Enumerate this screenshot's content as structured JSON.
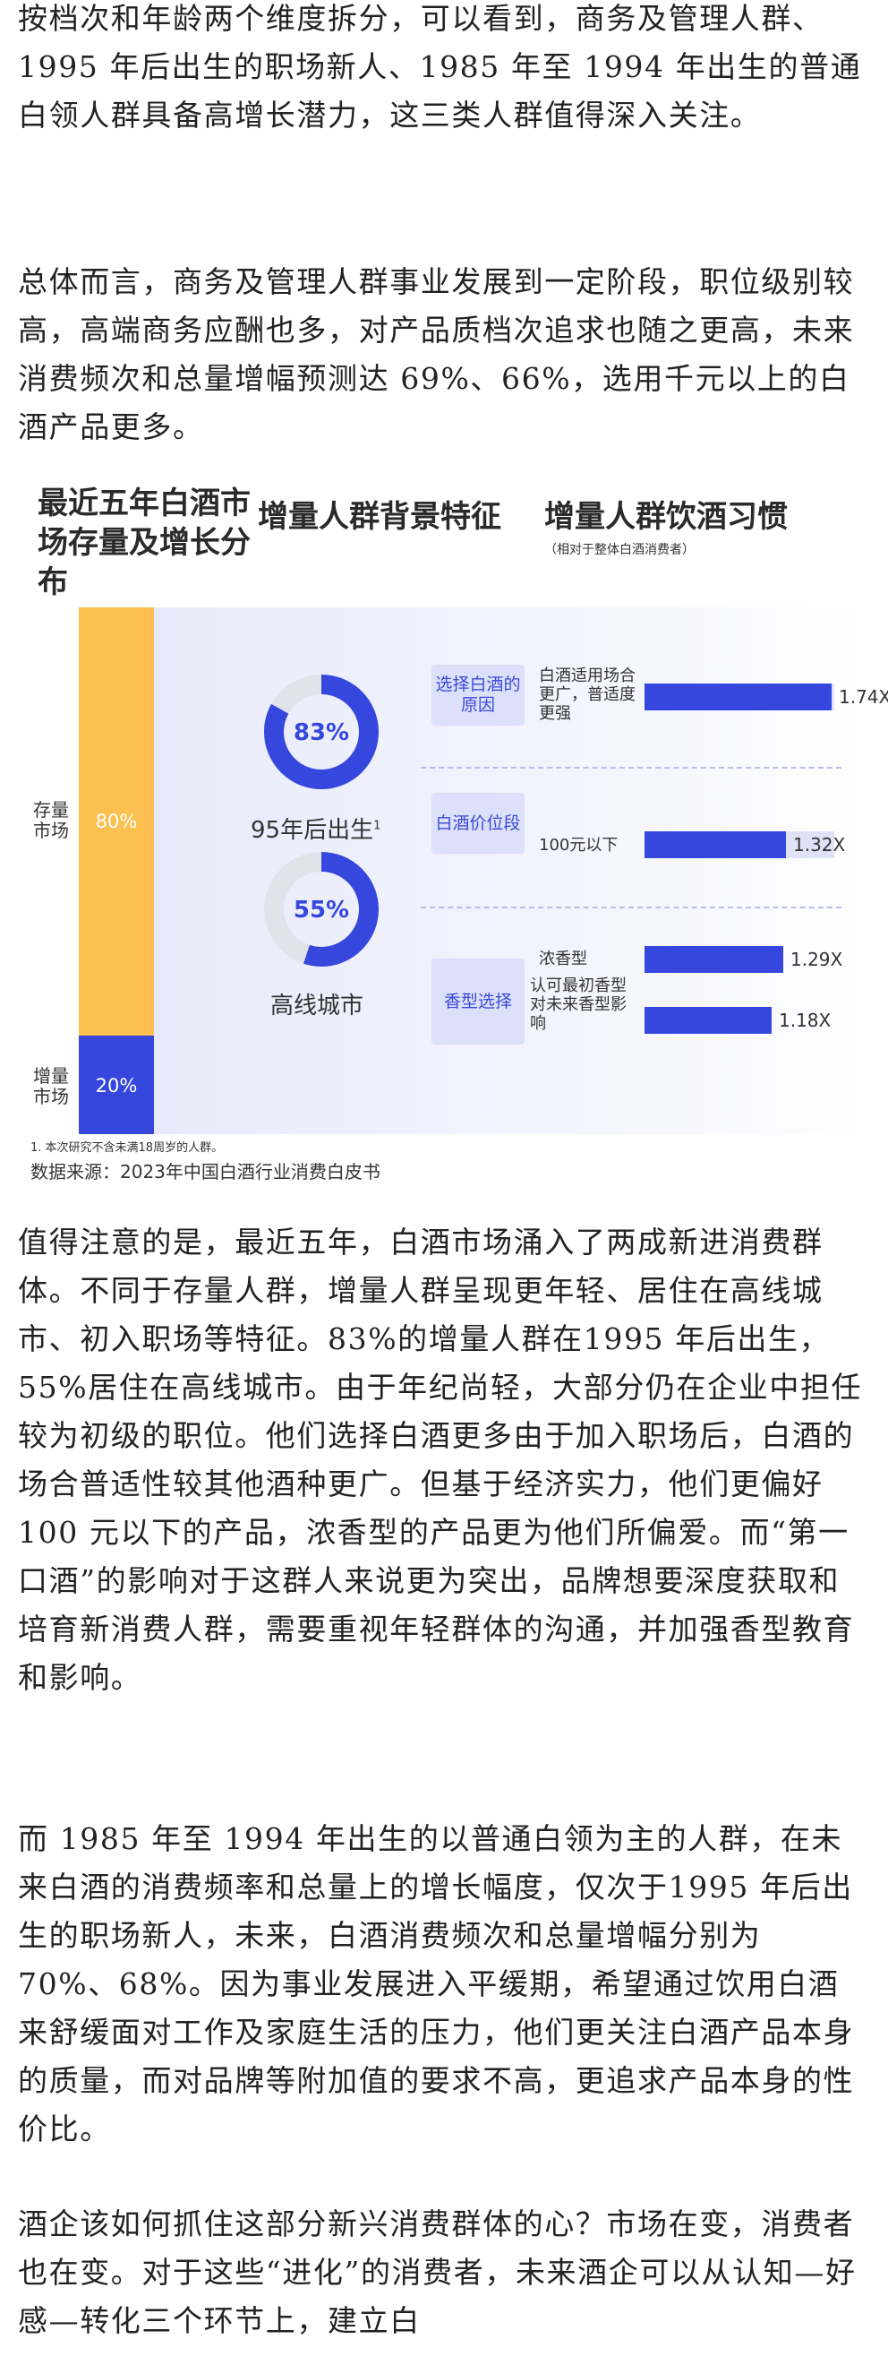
{
  "article": {
    "p1": "按档次和年龄两个维度拆分，可以看到，商务及管理人群、1995 年后出生的职场新人、1985 年至 1994 年出生的普通白领人群具备高增长潜力，这三类人群值得深入关注。",
    "p2": "总体而言，商务及管理人群事业发展到一定阶段，职位级别较高，高端商务应酬也多，对产品质档次追求也随之更高，未来消费频次和总量增幅预测达 69%、66%，选用千元以上的白酒产品更多。",
    "p3": "值得注意的是，最近五年，白酒市场涌入了两成新进消费群体。不同于存量人群，增量人群呈现更年轻、居住在高线城市、初入职场等特征。83%的增量人群在1995 年后出生，55%居住在高线城市。由于年纪尚轻，大部分仍在企业中担任较为初级的职位。他们选择白酒更多由于加入职场后，白酒的场合普适性较其他酒种更广。但基于经济实力，他们更偏好 100 元以下的产品，浓香型的产品更为他们所偏爱。而“第一口酒”的影响对于这群人来说更为突出，品牌想要深度获取和培育新消费人群，需要重视年轻群体的沟通，并加强香型教育和影响。",
    "p4": "而 1985 年至 1994 年出生的以普通白领为主的人群，在未来白酒的消费频率和总量上的增长幅度，仅次于1995 年后出生的职场新人，未来，白酒消费频次和总量增幅分别为 70%、68%。因为事业发展进入平缓期，希望通过饮用白酒来舒缓面对工作及家庭生活的压力，他们更关注白酒产品本身的质量，而对品牌等附加值的要求不高，更追求产品本身的性价比。",
    "p5": "酒企该如何抓住这部分新兴消费群体的心？市场在变，消费者也在变。对于这些“进化”的消费者，未来酒企可以从认知—好感—转化三个环节上，建立白"
  },
  "infographic": {
    "header_market": "最近五年白酒市场存量及增长分布",
    "header_background": "增量人群背景特征",
    "header_habits": "增量人群饮酒习惯",
    "header_habits_sub": "（相对于整体白酒消费者）",
    "market": {
      "stock_label": "存量市场",
      "stock_pct": "80%",
      "stock_value": 80,
      "increment_label": "增量市场",
      "increment_pct": "20%",
      "increment_value": 20
    },
    "background": [
      {
        "value": 83,
        "text": "83%",
        "label": "95年后出生",
        "note": "1"
      },
      {
        "value": 55,
        "text": "55%",
        "label": "高线城市"
      }
    ],
    "habits": [
      {
        "tag": "选择白酒的原因",
        "desc": "白酒适用场合更广，普适度更强",
        "value": 1.74,
        "text": "1.74X"
      },
      {
        "tag": "白酒价位段",
        "desc": "100元以下",
        "value": 1.32,
        "text": "1.32X"
      },
      {
        "tag": "香型选择",
        "desc": "浓香型",
        "value": 1.29,
        "text": "1.29X"
      },
      {
        "tag": "香型选择",
        "desc": "认可最初香型对未来香型影响",
        "value": 1.18,
        "text": "1.18X"
      }
    ],
    "footnote": "1. 本次研究不含未满18周岁的人群。",
    "source": "数据来源：2023年中国白酒行业消费白皮书",
    "colors": {
      "accent": "#3647de",
      "stock": "#fbc04f",
      "ring_track": "#e2e3ea"
    }
  }
}
